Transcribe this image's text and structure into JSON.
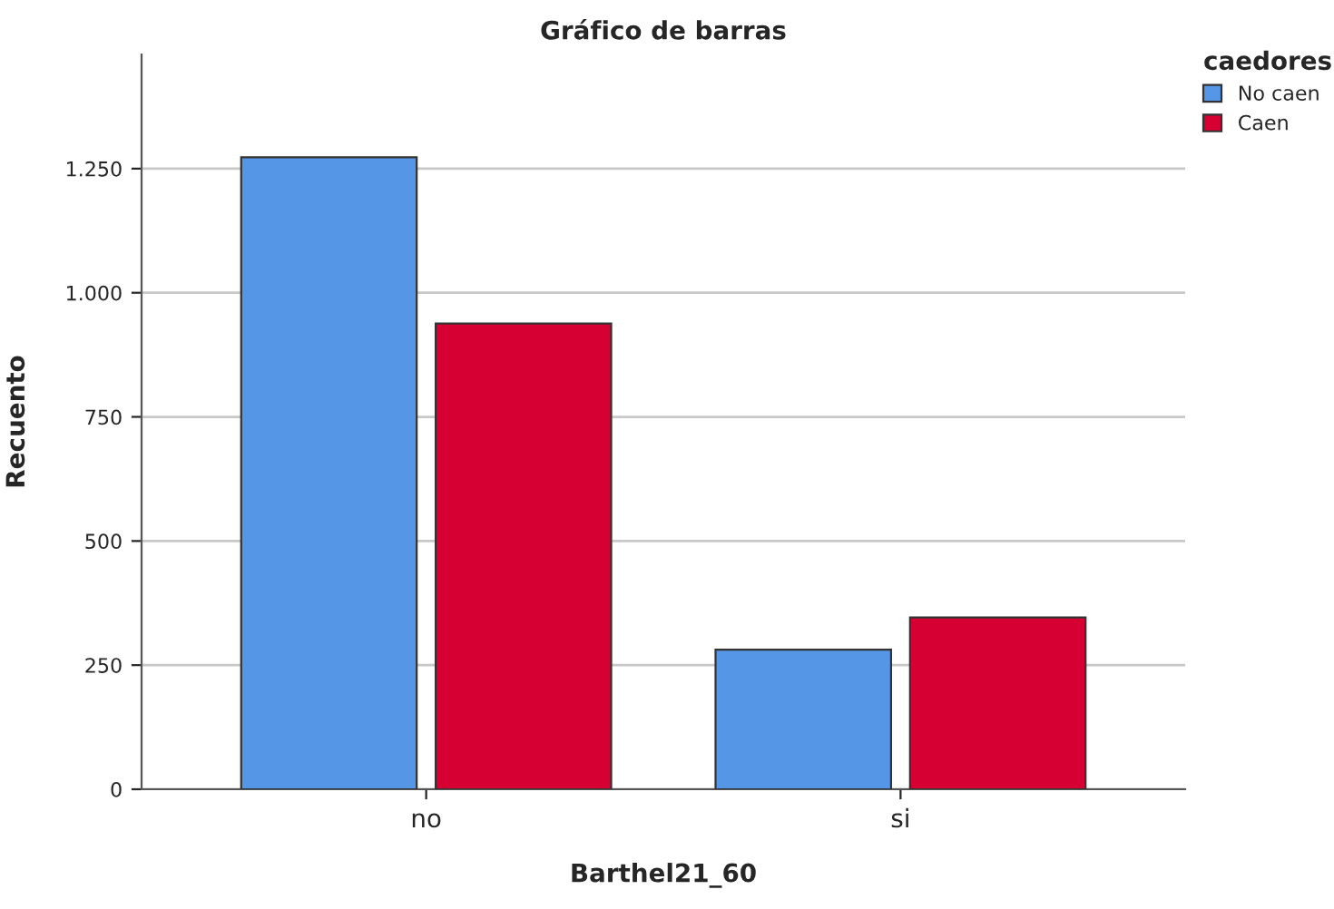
{
  "chart_data": {
    "type": "bar",
    "title": "Gráfico de barras",
    "xlabel": "Barthel21_60",
    "ylabel": "Recuento",
    "legend_title": "caedores",
    "categories": [
      "no",
      "si"
    ],
    "series": [
      {
        "name": "No caen",
        "color": "#5596e6",
        "values": [
          1273,
          281
        ]
      },
      {
        "name": "Caen",
        "color": "#d60032",
        "values": [
          938,
          346
        ]
      }
    ],
    "ylim": [
      0,
      1480
    ],
    "yticks": [
      0,
      250,
      500,
      750,
      {
        "value": 1000,
        "label": "1.000"
      },
      {
        "value": 1250,
        "label": "1.250"
      }
    ],
    "grid": "y",
    "legend": "top right"
  }
}
